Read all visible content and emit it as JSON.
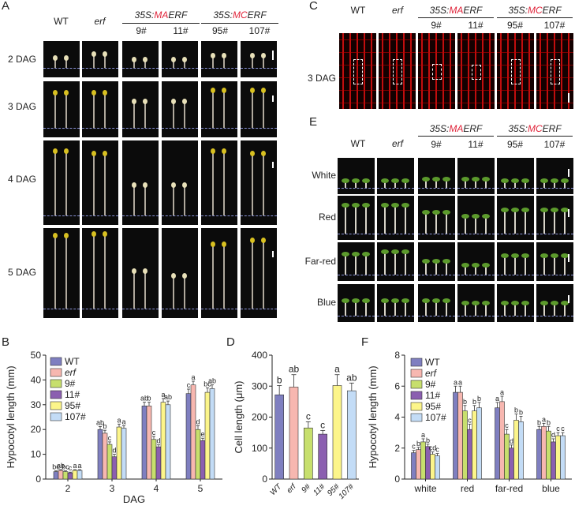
{
  "panels": {
    "A": "A",
    "B": "B",
    "C": "C",
    "D": "D",
    "E": "E",
    "F": "F"
  },
  "genotypes": {
    "wt": "WT",
    "erf": "erf",
    "ma_prefix": "35S:",
    "ma_color": "MA",
    "ma_suffix": "ERF",
    "mc_prefix": "35S:",
    "mc_color": "MC",
    "mc_suffix": "ERF",
    "lines": [
      "9#",
      "11#",
      "95#",
      "107#"
    ]
  },
  "panelA": {
    "rows": [
      "2 DAG",
      "3 DAG",
      "4 DAG",
      "5 DAG"
    ]
  },
  "panelC": {
    "row": "3 DAG"
  },
  "panelE": {
    "rows": [
      "White",
      "Red",
      "Far-red",
      "Blue"
    ]
  },
  "colors": {
    "WT": "#7f7fc0",
    "erf": "#f7b7b0",
    "9#": "#c7df6d",
    "11#": "#8b5fb0",
    "95#": "#fcf58a",
    "107#": "#c3dcf6",
    "accent_red": "#e0243a",
    "dash": "#8b93d8"
  },
  "chart_data": [
    {
      "type": "bar",
      "title": "",
      "xlabel": "DAG",
      "ylabel": "Hypocotyl length (mm)",
      "ylim": [
        0,
        50
      ],
      "yticks": [
        0,
        10,
        20,
        30,
        40,
        50
      ],
      "categories": [
        "2",
        "3",
        "4",
        "5"
      ],
      "legend": [
        "WT",
        "erf",
        "9#",
        "11#",
        "95#",
        "107#"
      ],
      "series": [
        {
          "name": "WT",
          "values": [
            3,
            20,
            29.5,
            34.5
          ],
          "errors": [
            0.3,
            1.2,
            1.5,
            1.8
          ],
          "letters": [
            "bc",
            "ab",
            "ab",
            "c"
          ]
        },
        {
          "name": "erf",
          "values": [
            3.5,
            18.5,
            29.5,
            38
          ],
          "errors": [
            0.3,
            1.2,
            1.5,
            1.5
          ],
          "letters": [
            "ab",
            "b",
            "b",
            "a"
          ]
        },
        {
          "name": "9#",
          "values": [
            3,
            14,
            16,
            20
          ],
          "errors": [
            0.3,
            1,
            1.2,
            1.5
          ],
          "letters": [
            "bc",
            "c",
            "c",
            "d"
          ]
        },
        {
          "name": "11#",
          "values": [
            2.5,
            9,
            13,
            15.5
          ],
          "errors": [
            0.3,
            1,
            0.8,
            1
          ],
          "letters": [
            "c",
            "d",
            "d",
            "e"
          ]
        },
        {
          "name": "95#",
          "values": [
            3.5,
            21,
            31,
            35
          ],
          "errors": [
            0.3,
            1.2,
            1.5,
            1.8
          ],
          "letters": [
            "a",
            "a",
            "a",
            "bc"
          ]
        },
        {
          "name": "107#",
          "values": [
            3.5,
            20.5,
            30,
            36.5
          ],
          "errors": [
            0.3,
            1,
            1.5,
            1.5
          ],
          "letters": [
            "a",
            "a",
            "ab",
            "ab"
          ]
        }
      ]
    },
    {
      "type": "bar",
      "title": "",
      "xlabel": "",
      "ylabel": "Cell length (μm)",
      "ylim": [
        0,
        400
      ],
      "yticks": [
        0,
        100,
        200,
        300,
        400
      ],
      "categories": [
        "WT",
        "erf",
        "9#",
        "11#",
        "95#",
        "107#"
      ],
      "values": [
        272,
        297,
        165,
        145,
        302,
        285
      ],
      "errors": [
        30,
        40,
        20,
        12,
        35,
        25
      ],
      "letters": [
        "b",
        "ab",
        "c",
        "c",
        "a",
        "ab"
      ]
    },
    {
      "type": "bar",
      "title": "",
      "xlabel": "",
      "ylabel": "Hypocotyl length (mm)",
      "ylim": [
        0,
        8
      ],
      "yticks": [
        0,
        2,
        4,
        6,
        8
      ],
      "categories": [
        "white",
        "red",
        "far-red",
        "blue"
      ],
      "legend": [
        "WT",
        "erf",
        "9#",
        "11#",
        "95#",
        "107#"
      ],
      "series": [
        {
          "name": "WT",
          "values": [
            1.7,
            5.6,
            4.6,
            3.2
          ],
          "errors": [
            0.15,
            0.4,
            0.35,
            0.2
          ],
          "letters": [
            "c",
            "a",
            "a",
            "b"
          ]
        },
        {
          "name": "erf",
          "values": [
            1.9,
            5.6,
            5.0,
            3.4
          ],
          "errors": [
            0.15,
            0.4,
            0.35,
            0.2
          ],
          "letters": [
            "b",
            "a",
            "a",
            "a"
          ]
        },
        {
          "name": "9#",
          "values": [
            2.4,
            4.4,
            2.9,
            3.1
          ],
          "errors": [
            0.2,
            0.35,
            0.3,
            0.3
          ],
          "letters": [
            "a",
            "b",
            "c",
            "b"
          ]
        },
        {
          "name": "11#",
          "values": [
            2.1,
            3.2,
            2.0,
            2.4
          ],
          "errors": [
            0.15,
            0.35,
            0.2,
            0.2
          ],
          "letters": [
            "b",
            "c",
            "d",
            "d"
          ]
        },
        {
          "name": "95#",
          "values": [
            1.6,
            4.4,
            3.8,
            2.8
          ],
          "errors": [
            0.15,
            0.35,
            0.4,
            0.2
          ],
          "letters": [
            "cd",
            "b",
            "b",
            "c"
          ]
        },
        {
          "name": "107#",
          "values": [
            1.5,
            4.6,
            3.7,
            2.8
          ],
          "errors": [
            0.15,
            0.35,
            0.35,
            0.2
          ],
          "letters": [
            "c",
            "b",
            "b",
            "c"
          ]
        }
      ]
    }
  ]
}
